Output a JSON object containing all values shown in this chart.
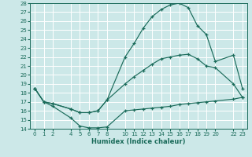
{
  "xlabel": "Humidex (Indice chaleur)",
  "bg_color": "#cce8e8",
  "grid_color": "#ffffff",
  "line_color": "#1a6b5a",
  "x_ticks": [
    0,
    1,
    2,
    4,
    5,
    6,
    7,
    8,
    10,
    11,
    12,
    13,
    14,
    15,
    16,
    17,
    18,
    19,
    20,
    22,
    23
  ],
  "ylim": [
    14,
    28
  ],
  "yticks": [
    14,
    15,
    16,
    17,
    18,
    19,
    20,
    21,
    22,
    23,
    24,
    25,
    26,
    27,
    28
  ],
  "xlim": [
    -0.5,
    23.5
  ],
  "line1_x": [
    0,
    1,
    2,
    4,
    5,
    6,
    7,
    8,
    10,
    11,
    12,
    13,
    14,
    15,
    16,
    17,
    18,
    19,
    20,
    22,
    23
  ],
  "line1_y": [
    18.5,
    17.0,
    16.5,
    15.2,
    14.3,
    14.1,
    14.1,
    14.2,
    16.0,
    16.1,
    16.2,
    16.3,
    16.4,
    16.5,
    16.7,
    16.8,
    16.9,
    17.0,
    17.1,
    17.3,
    17.5
  ],
  "line2_x": [
    0,
    1,
    2,
    4,
    5,
    6,
    7,
    8,
    10,
    11,
    12,
    13,
    14,
    15,
    16,
    17,
    18,
    19,
    20,
    22,
    23
  ],
  "line2_y": [
    18.5,
    17.0,
    16.8,
    16.2,
    15.8,
    15.8,
    16.0,
    17.2,
    19.0,
    19.8,
    20.5,
    21.2,
    21.8,
    22.0,
    22.2,
    22.3,
    21.8,
    21.0,
    20.8,
    19.0,
    17.5
  ],
  "line3_x": [
    0,
    1,
    2,
    4,
    5,
    6,
    7,
    8,
    10,
    11,
    12,
    13,
    14,
    15,
    16,
    17,
    18,
    19,
    20,
    22,
    23
  ],
  "line3_y": [
    18.5,
    17.0,
    16.8,
    16.2,
    15.8,
    15.8,
    16.0,
    17.2,
    22.0,
    23.5,
    25.2,
    26.5,
    27.3,
    27.8,
    28.0,
    27.5,
    25.5,
    24.5,
    21.5,
    22.2,
    18.5
  ]
}
